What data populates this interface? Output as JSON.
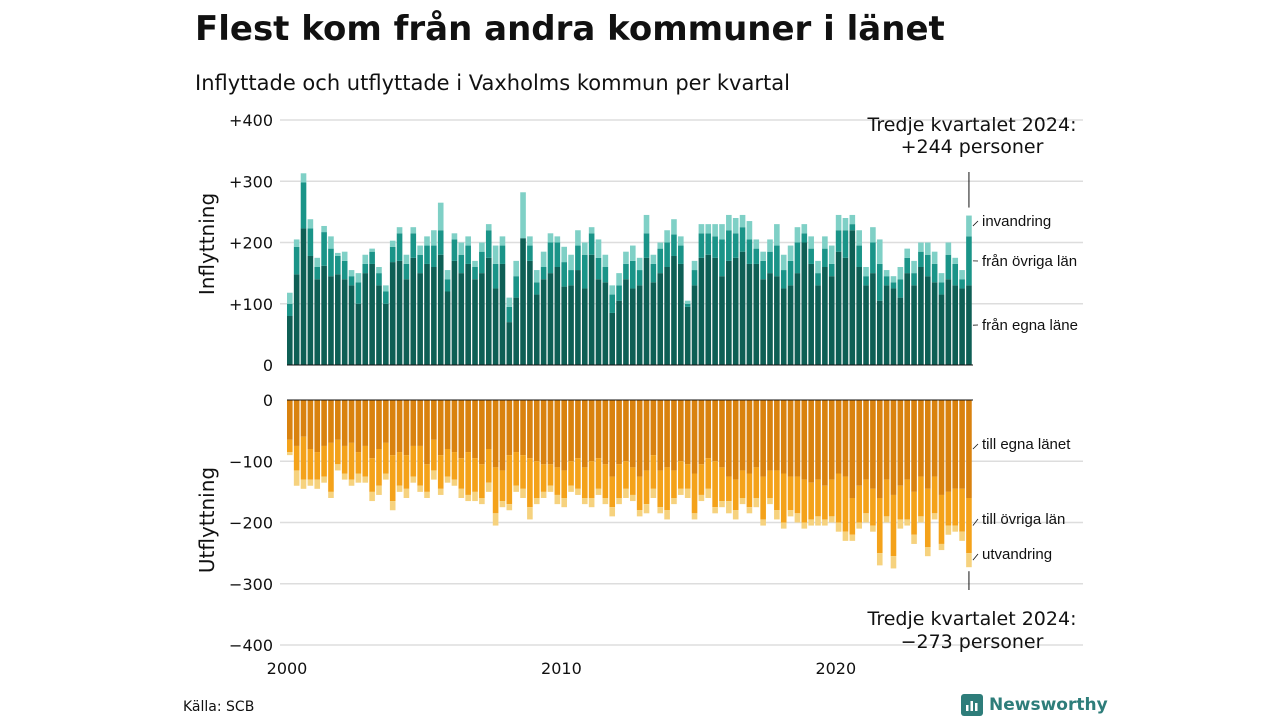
{
  "chart_data": {
    "type": "bar",
    "title": "Flest kom från andra kommuner i länet",
    "subtitle": "Inflyttade och utflyttade i Vaxholms kommun per kvartal",
    "source": "Källa: SCB",
    "brand": "Newsworthy",
    "x_ticks": [
      "2000",
      "2010",
      "2020"
    ],
    "x_range": [
      2000,
      2024.75
    ],
    "panels": [
      {
        "ylabel": "Inflyttning",
        "ylim": [
          0,
          400
        ],
        "y_ticks": [
          0,
          100,
          200,
          300,
          400
        ],
        "y_tick_labels": [
          "0",
          "+100",
          "+200",
          "+300",
          "+400"
        ],
        "annotation": [
          "Tredje kvartalet 2024:",
          "+244 personer"
        ],
        "series": [
          {
            "name": "från egna läne",
            "color": "#0e5f55",
            "values": [
              80,
              148,
              223,
              178,
              140,
              162,
              145,
              148,
              140,
              130,
              100,
              150,
              165,
              130,
              100,
              168,
              170,
              140,
              175,
              150,
              165,
              160,
              180,
              120,
              170,
              150,
              165,
              140,
              150,
              175,
              125,
              165,
              70,
              110,
              207,
              170,
              115,
              140,
              150,
              160,
              128,
              130,
              155,
              125,
              180,
              140,
              135,
              85,
              105,
              140,
              125,
              130,
              175,
              135,
              150,
              160,
              178,
              165,
              95,
              130,
              175,
              180,
              175,
              145,
              170,
              175,
              185,
              165,
              165,
              140,
              150,
              145,
              125,
              130,
              150,
              200,
              165,
              130,
              160,
              145,
              185,
              175,
              220,
              160,
              130,
              150,
              105,
              130,
              125,
              110,
              150,
              130,
              160,
              145,
              135,
              115,
              140,
              130,
              125,
              130
            ]
          },
          {
            "name": "från övriga län",
            "color": "#1a9488",
            "values": [
              20,
              45,
              75,
              45,
              20,
              55,
              45,
              30,
              30,
              15,
              35,
              15,
              20,
              20,
              20,
              25,
              45,
              25,
              40,
              30,
              30,
              35,
              40,
              20,
              35,
              30,
              30,
              20,
              35,
              45,
              40,
              30,
              25,
              35,
              0,
              25,
              20,
              20,
              50,
              40,
              40,
              25,
              40,
              55,
              35,
              35,
              25,
              30,
              25,
              25,
              45,
              25,
              40,
              30,
              40,
              40,
              35,
              30,
              5,
              25,
              40,
              35,
              35,
              60,
              50,
              40,
              40,
              40,
              25,
              30,
              35,
              50,
              30,
              40,
              50,
              15,
              25,
              20,
              30,
              20,
              35,
              45,
              10,
              35,
              15,
              50,
              60,
              15,
              10,
              30,
              25,
              20,
              25,
              35,
              30,
              20,
              40,
              35,
              15,
              80
            ]
          },
          {
            "name": "invandring",
            "color": "#7fd0c6",
            "values": [
              18,
              12,
              15,
              15,
              15,
              10,
              20,
              5,
              15,
              10,
              15,
              15,
              5,
              10,
              10,
              10,
              10,
              15,
              10,
              15,
              15,
              25,
              45,
              15,
              10,
              20,
              15,
              10,
              15,
              10,
              30,
              15,
              15,
              25,
              75,
              15,
              20,
              25,
              15,
              10,
              25,
              25,
              25,
              20,
              10,
              30,
              20,
              15,
              20,
              20,
              25,
              20,
              30,
              15,
              10,
              20,
              25,
              15,
              5,
              15,
              15,
              15,
              20,
              25,
              25,
              25,
              20,
              30,
              15,
              15,
              20,
              35,
              25,
              25,
              25,
              15,
              20,
              20,
              20,
              30,
              25,
              20,
              15,
              25,
              15,
              25,
              40,
              10,
              10,
              20,
              15,
              20,
              15,
              20,
              20,
              15,
              20,
              10,
              15,
              34
            ]
          }
        ],
        "side_labels": [
          "invandring",
          "från övriga län",
          "från egna läne"
        ]
      },
      {
        "ylabel": "Utflyttning",
        "ylim": [
          -400,
          0
        ],
        "y_ticks": [
          0,
          -100,
          -200,
          -300,
          -400
        ],
        "y_tick_labels": [
          "0",
          "−100",
          "−200",
          "−300",
          "−400"
        ],
        "annotation": [
          "Tredje kvartalet 2024:",
          "−273 personer"
        ],
        "series": [
          {
            "name": "till egna länet",
            "color": "#d9820f",
            "values": [
              -65,
              -75,
              -60,
              -80,
              -85,
              -75,
              -70,
              -65,
              -75,
              -70,
              -85,
              -75,
              -95,
              -80,
              -70,
              -90,
              -85,
              -90,
              -75,
              -75,
              -105,
              -65,
              -90,
              -80,
              -85,
              -95,
              -85,
              -95,
              -105,
              -80,
              -110,
              -115,
              -90,
              -85,
              -90,
              -95,
              -100,
              -105,
              -105,
              -110,
              -115,
              -100,
              -95,
              -110,
              -100,
              -95,
              -105,
              -125,
              -105,
              -100,
              -110,
              -125,
              -115,
              -90,
              -115,
              -110,
              -115,
              -100,
              -105,
              -120,
              -105,
              -95,
              -100,
              -110,
              -125,
              -130,
              -115,
              -120,
              -110,
              -125,
              -115,
              -115,
              -120,
              -125,
              -125,
              -130,
              -135,
              -130,
              -140,
              -130,
              -120,
              -125,
              -160,
              -140,
              -130,
              -145,
              -160,
              -130,
              -155,
              -140,
              -130,
              -150,
              -125,
              -145,
              -125,
              -155,
              -150,
              -145,
              -145,
              -160
            ]
          },
          {
            "name": "till övriga län",
            "color": "#f4a21a",
            "values": [
              -20,
              -40,
              -70,
              -50,
              -45,
              -50,
              -80,
              -40,
              -45,
              -60,
              -35,
              -50,
              -55,
              -60,
              -50,
              -75,
              -55,
              -55,
              -50,
              -65,
              -45,
              -50,
              -55,
              -45,
              -45,
              -50,
              -70,
              -55,
              -55,
              -55,
              -75,
              -50,
              -80,
              -55,
              -55,
              -80,
              -60,
              -45,
              -35,
              -45,
              -45,
              -40,
              -50,
              -50,
              -60,
              -50,
              -55,
              -50,
              -55,
              -45,
              -45,
              -55,
              -55,
              -55,
              -60,
              -70,
              -45,
              -45,
              -40,
              -65,
              -50,
              -50,
              -75,
              -55,
              -40,
              -50,
              -45,
              -55,
              -50,
              -70,
              -45,
              -65,
              -80,
              -55,
              -60,
              -70,
              -60,
              -60,
              -55,
              -60,
              -80,
              -90,
              -60,
              -60,
              -55,
              -60,
              -90,
              -60,
              -100,
              -55,
              -65,
              -70,
              -65,
              -95,
              -60,
              -80,
              -55,
              -60,
              -70,
              -90
            ]
          },
          {
            "name": "utvandring",
            "color": "#f6d27e",
            "values": [
              -5,
              -25,
              -15,
              -10,
              -15,
              -10,
              -10,
              -10,
              -10,
              -10,
              -15,
              -10,
              -15,
              -15,
              -10,
              -15,
              -10,
              -15,
              -10,
              -10,
              -10,
              -15,
              -10,
              -10,
              -10,
              -15,
              -10,
              -15,
              -10,
              -15,
              -20,
              -10,
              -10,
              -10,
              -15,
              -20,
              -10,
              -10,
              -10,
              -15,
              -15,
              -10,
              -10,
              -10,
              -15,
              -10,
              -10,
              -15,
              -10,
              -15,
              -10,
              -10,
              -15,
              -15,
              -10,
              -15,
              -10,
              -10,
              -15,
              -10,
              -10,
              -15,
              -10,
              -10,
              -20,
              -15,
              -10,
              -10,
              -15,
              -10,
              -10,
              -15,
              -10,
              -10,
              -15,
              -10,
              -10,
              -15,
              -10,
              -10,
              -15,
              -15,
              -10,
              -10,
              -15,
              -10,
              -20,
              -10,
              -20,
              -15,
              -10,
              -15,
              -10,
              -15,
              -10,
              -10,
              -15,
              -10,
              -15,
              -23
            ]
          }
        ],
        "side_labels": [
          "till egna länet",
          "till övriga län",
          "utvandring"
        ]
      }
    ]
  }
}
